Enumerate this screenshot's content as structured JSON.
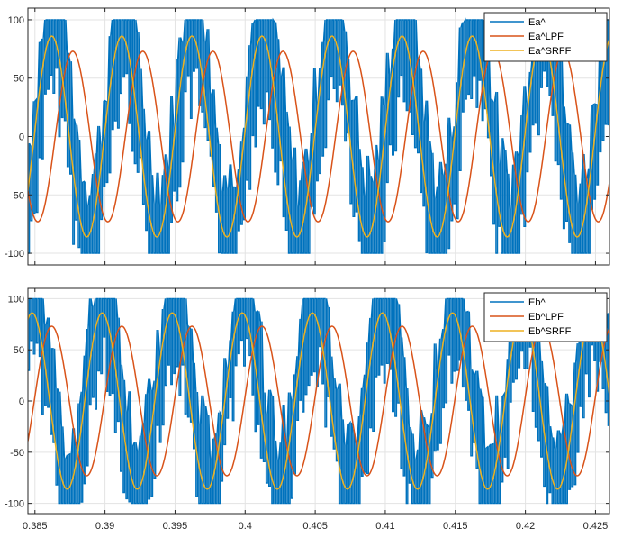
{
  "chart_data": [
    {
      "type": "line",
      "title": "",
      "xlabel": "",
      "ylabel": "",
      "xlim": [
        0.3845,
        0.426
      ],
      "ylim": [
        -110,
        110
      ],
      "yticks": [
        -100,
        -50,
        0,
        50,
        100
      ],
      "ytick_labels": [
        "-100",
        "-50",
        "0",
        "50",
        "100"
      ],
      "xticks": [
        0.385,
        0.39,
        0.395,
        0.4,
        0.405,
        0.41,
        0.415,
        0.42,
        0.425
      ],
      "xtick_labels": [],
      "grid": true,
      "legend_position": "top-right",
      "frequency_hz": 200,
      "series": [
        {
          "name": "Ea^",
          "color": "#0072BD",
          "kind": "pwm",
          "amplitude": 100,
          "reference_amplitude": 86,
          "phase_peak_time": 0.3863,
          "switching_interval_s": 0.0002
        },
        {
          "name": "Ea^LPF",
          "color": "#D95319",
          "kind": "sine",
          "amplitude": 73,
          "peak_time": 0.3877
        },
        {
          "name": "Ea^SRFF",
          "color": "#EDB120",
          "kind": "sine",
          "amplitude": 86,
          "peak_time": 0.3862
        }
      ]
    },
    {
      "type": "line",
      "title": "",
      "xlabel": "",
      "ylabel": "",
      "xlim": [
        0.3845,
        0.426
      ],
      "ylim": [
        -110,
        110
      ],
      "yticks": [
        -100,
        -50,
        0,
        50,
        100
      ],
      "ytick_labels": [
        "-100",
        "-50",
        "0",
        "50",
        "100"
      ],
      "xticks": [
        0.385,
        0.39,
        0.395,
        0.4,
        0.405,
        0.41,
        0.415,
        0.42,
        0.425
      ],
      "xtick_labels": [
        "0.385",
        "0.39",
        "0.395",
        "0.4",
        "0.405",
        "0.41",
        "0.415",
        "0.42",
        "0.425"
      ],
      "grid": true,
      "legend_position": "top-right",
      "frequency_hz": 200,
      "series": [
        {
          "name": "Eb^",
          "color": "#0072BD",
          "kind": "pwm",
          "amplitude": 100,
          "reference_amplitude": 86,
          "phase_peak_time": 0.3899,
          "switching_interval_s": 0.0002
        },
        {
          "name": "Eb^LPF",
          "color": "#D95319",
          "kind": "sine",
          "amplitude": 73,
          "peak_time": 0.3912
        },
        {
          "name": "Eb^SRFF",
          "color": "#EDB120",
          "kind": "sine",
          "amplitude": 86,
          "peak_time": 0.3898
        }
      ]
    }
  ]
}
